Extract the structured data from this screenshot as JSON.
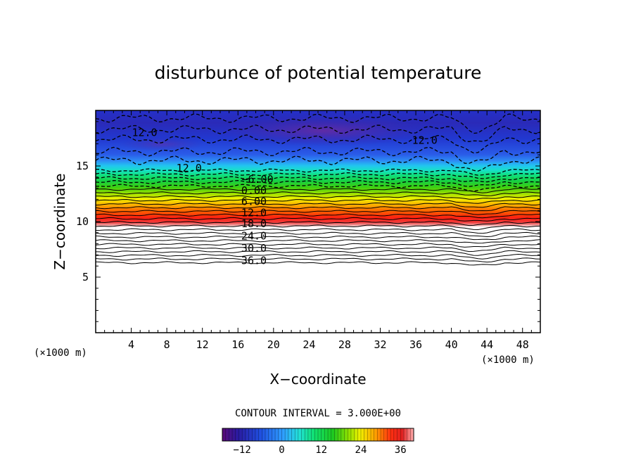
{
  "chart_data": {
    "type": "heatmap",
    "title": "disturbunce of potential temperature",
    "xlabel": "X−coordinate",
    "ylabel": "Z−coordinate",
    "x_unit_label_left": "(×1000 m)",
    "x_unit_label_right": "(×1000 m)",
    "xlim": [
      0,
      50
    ],
    "ylim": [
      0,
      20
    ],
    "x_ticks": [
      4,
      8,
      12,
      16,
      20,
      24,
      28,
      32,
      36,
      40,
      44,
      48
    ],
    "x_tick_labels": [
      "4",
      "8",
      "12",
      "16",
      "20",
      "24",
      "28",
      "32",
      "36",
      "40",
      "44",
      "48"
    ],
    "y_ticks": [
      5,
      10,
      15
    ],
    "y_tick_labels": [
      "5",
      "10",
      "15"
    ],
    "contour_interval_text": "CONTOUR INTERVAL = 3.000E+00",
    "contour_labels": [
      {
        "text": "12.0",
        "x": 5.5,
        "z": 18.0
      },
      {
        "text": "12.0",
        "x": 10.5,
        "z": 14.8
      },
      {
        "text": "12.0",
        "x": 37.0,
        "z": 17.3
      },
      {
        "text": "−6.00",
        "x": 18.2,
        "z": 13.8
      },
      {
        "text": "0.00",
        "x": 17.8,
        "z": 12.8
      },
      {
        "text": "6.00",
        "x": 17.8,
        "z": 11.8
      },
      {
        "text": "12.0",
        "x": 17.8,
        "z": 10.8
      },
      {
        "text": "18.0",
        "x": 17.8,
        "z": 9.8
      },
      {
        "text": "24.0",
        "x": 17.8,
        "z": 8.7
      },
      {
        "text": "30.0",
        "x": 17.8,
        "z": 7.6
      },
      {
        "text": "36.0",
        "x": 17.8,
        "z": 6.5
      }
    ],
    "profile": [
      {
        "z": 6.0,
        "value": 39
      },
      {
        "z": 7.0,
        "value": 33
      },
      {
        "z": 8.0,
        "value": 27
      },
      {
        "z": 9.0,
        "value": 21
      },
      {
        "z": 10.0,
        "value": 15
      },
      {
        "z": 11.0,
        "value": 9
      },
      {
        "z": 12.0,
        "value": 3
      },
      {
        "z": 13.0,
        "value": -3
      },
      {
        "z": 14.0,
        "value": -9
      },
      {
        "z": 15.0,
        "value": -13
      },
      {
        "z": 17.0,
        "value": -16
      },
      {
        "z": 18.0,
        "value": -18
      },
      {
        "z": 20.0,
        "value": -16
      }
    ],
    "no_data_below_z": 6.0,
    "colorbar": {
      "range": [
        -18,
        40
      ],
      "ticks": [
        -12,
        0,
        12,
        24,
        36
      ],
      "tick_labels": [
        "−12",
        "0",
        "12",
        "24",
        "36"
      ]
    }
  }
}
